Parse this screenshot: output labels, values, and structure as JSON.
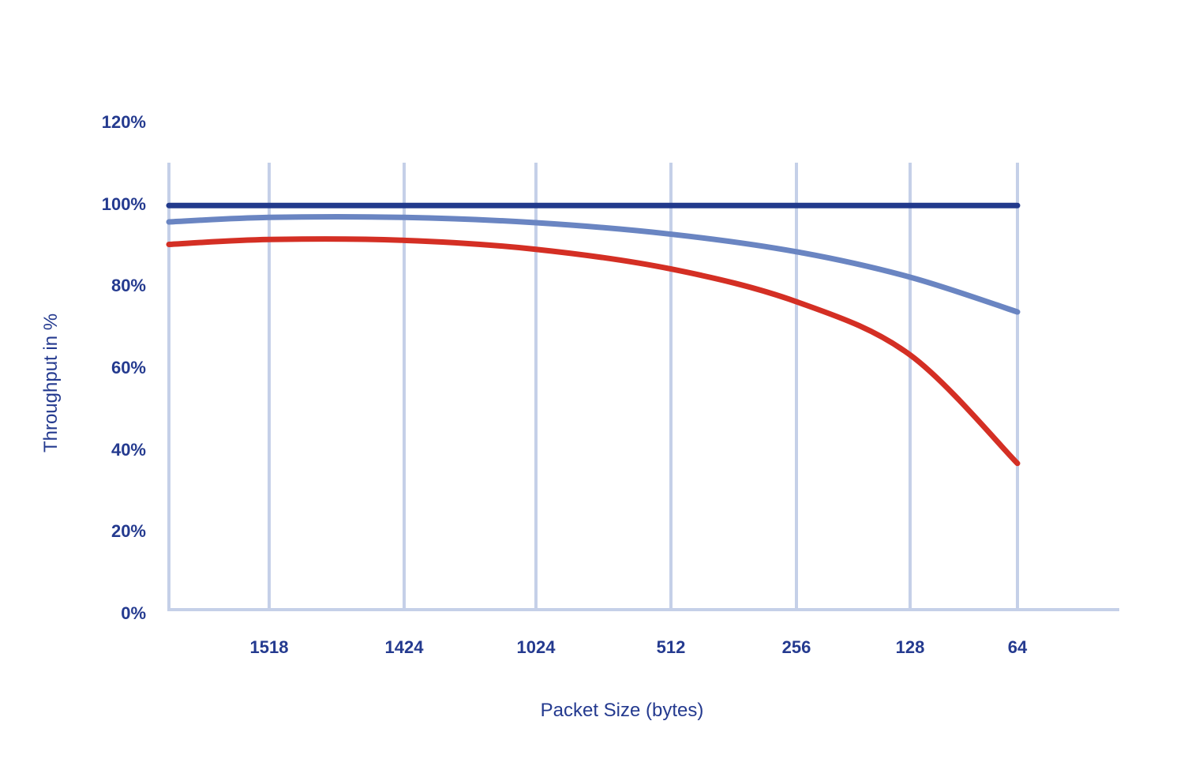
{
  "chart_data": {
    "type": "line",
    "title": "",
    "xlabel": "Packet Size (bytes)",
    "ylabel": "Throughput in %",
    "categories": [
      "1518",
      "1424",
      "1024",
      "512",
      "256",
      "128",
      "64"
    ],
    "y_ticks": [
      "0%",
      "20%",
      "40%",
      "60%",
      "80%",
      "100%",
      "120%"
    ],
    "ylim": [
      0,
      120
    ],
    "grid": "vertical",
    "legend": "none",
    "series": [
      {
        "color": "#223a8c",
        "points": [
          [
            1540,
            99.5
          ],
          [
            1518,
            99.5
          ],
          [
            1424,
            99.5
          ],
          [
            1024,
            99.5
          ],
          [
            512,
            99.5
          ],
          [
            256,
            99.5
          ],
          [
            128,
            99.5
          ],
          [
            64,
            99.5
          ]
        ]
      },
      {
        "color": "#6a85c2",
        "points": [
          [
            1540,
            95.5
          ],
          [
            1518,
            96.6
          ],
          [
            1424,
            96.6
          ],
          [
            1024,
            95.3
          ],
          [
            512,
            92.5
          ],
          [
            256,
            88.2
          ],
          [
            128,
            82.0
          ],
          [
            64,
            73.5
          ]
        ]
      },
      {
        "color": "#d42f24",
        "points": [
          [
            1540,
            90.0
          ],
          [
            1518,
            91.2
          ],
          [
            1424,
            91.0
          ],
          [
            1024,
            88.8
          ],
          [
            512,
            84.0
          ],
          [
            256,
            76.0
          ],
          [
            128,
            63.0
          ],
          [
            64,
            36.5
          ]
        ]
      }
    ]
  }
}
